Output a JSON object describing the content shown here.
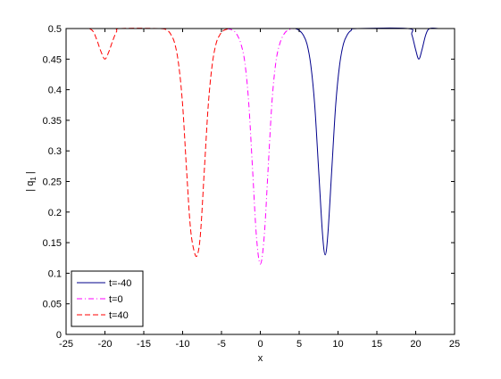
{
  "chart_data": {
    "type": "line",
    "xlabel": "x",
    "ylabel": "| q",
    "ylabel_subscript": "1",
    "ylabel_suffix": " |",
    "xlim": [
      -25,
      25
    ],
    "ylim": [
      0,
      0.5
    ],
    "xticks": [
      -25,
      -20,
      -15,
      -10,
      -5,
      0,
      5,
      10,
      15,
      20,
      25
    ],
    "yticks": [
      0,
      0.05,
      0.1,
      0.15,
      0.2,
      0.25,
      0.3,
      0.35,
      0.4,
      0.45,
      0.5
    ],
    "xtick_labels": [
      "-25",
      "-20",
      "-15",
      "-10",
      "-5",
      "0",
      "5",
      "10",
      "15",
      "20",
      "25"
    ],
    "ytick_labels": [
      "0",
      "0.05",
      "0.1",
      "0.15",
      "0.2",
      "0.25",
      "0.3",
      "0.35",
      "0.4",
      "0.45",
      "0.5"
    ],
    "grid": false,
    "legend_position": "bottom-left",
    "series": [
      {
        "name": "t=-40",
        "color": "#00008b",
        "style": "solid",
        "points": [
          [
            4.5,
            0.5
          ],
          [
            5,
            0.497
          ],
          [
            5.5,
            0.49
          ],
          [
            6,
            0.475
          ],
          [
            6.5,
            0.44
          ],
          [
            7,
            0.375
          ],
          [
            7.5,
            0.27
          ],
          [
            8,
            0.165
          ],
          [
            8.35,
            0.13
          ],
          [
            8.7,
            0.165
          ],
          [
            9.2,
            0.27
          ],
          [
            9.7,
            0.375
          ],
          [
            10.2,
            0.44
          ],
          [
            10.7,
            0.475
          ],
          [
            11.2,
            0.49
          ],
          [
            11.7,
            0.497
          ],
          [
            12.5,
            0.5
          ],
          [
            19,
            0.5
          ],
          [
            19.5,
            0.49
          ],
          [
            20,
            0.465
          ],
          [
            20.4,
            0.45
          ],
          [
            20.8,
            0.465
          ],
          [
            21.3,
            0.49
          ],
          [
            21.8,
            0.5
          ],
          [
            23,
            0.5
          ]
        ]
      },
      {
        "name": "t=0",
        "color": "#ff00ff",
        "style": "dashdot",
        "points": [
          [
            -4.3,
            0.5
          ],
          [
            -3.5,
            0.497
          ],
          [
            -3,
            0.49
          ],
          [
            -2.5,
            0.475
          ],
          [
            -2,
            0.445
          ],
          [
            -1.5,
            0.38
          ],
          [
            -1,
            0.27
          ],
          [
            -0.5,
            0.16
          ],
          [
            0,
            0.115
          ],
          [
            0.5,
            0.16
          ],
          [
            1,
            0.27
          ],
          [
            1.5,
            0.38
          ],
          [
            2,
            0.445
          ],
          [
            2.5,
            0.475
          ],
          [
            3,
            0.49
          ],
          [
            3.5,
            0.497
          ],
          [
            4.3,
            0.5
          ]
        ]
      },
      {
        "name": "t=40",
        "color": "#ff0000",
        "style": "dashed",
        "points": [
          [
            -22,
            0.5
          ],
          [
            -21.5,
            0.495
          ],
          [
            -21,
            0.48
          ],
          [
            -20.5,
            0.462
          ],
          [
            -20,
            0.45
          ],
          [
            -19.5,
            0.462
          ],
          [
            -19,
            0.48
          ],
          [
            -18.5,
            0.495
          ],
          [
            -18,
            0.5
          ],
          [
            -13,
            0.5
          ],
          [
            -12,
            0.497
          ],
          [
            -11.5,
            0.49
          ],
          [
            -11,
            0.475
          ],
          [
            -10.5,
            0.44
          ],
          [
            -10,
            0.375
          ],
          [
            -9.5,
            0.27
          ],
          [
            -9,
            0.175
          ],
          [
            -8.5,
            0.135
          ],
          [
            -8.1,
            0.13
          ],
          [
            -7.7,
            0.165
          ],
          [
            -7.2,
            0.27
          ],
          [
            -6.7,
            0.375
          ],
          [
            -6.2,
            0.44
          ],
          [
            -5.7,
            0.475
          ],
          [
            -5.2,
            0.49
          ],
          [
            -4.7,
            0.497
          ],
          [
            -4,
            0.5
          ]
        ]
      }
    ]
  }
}
